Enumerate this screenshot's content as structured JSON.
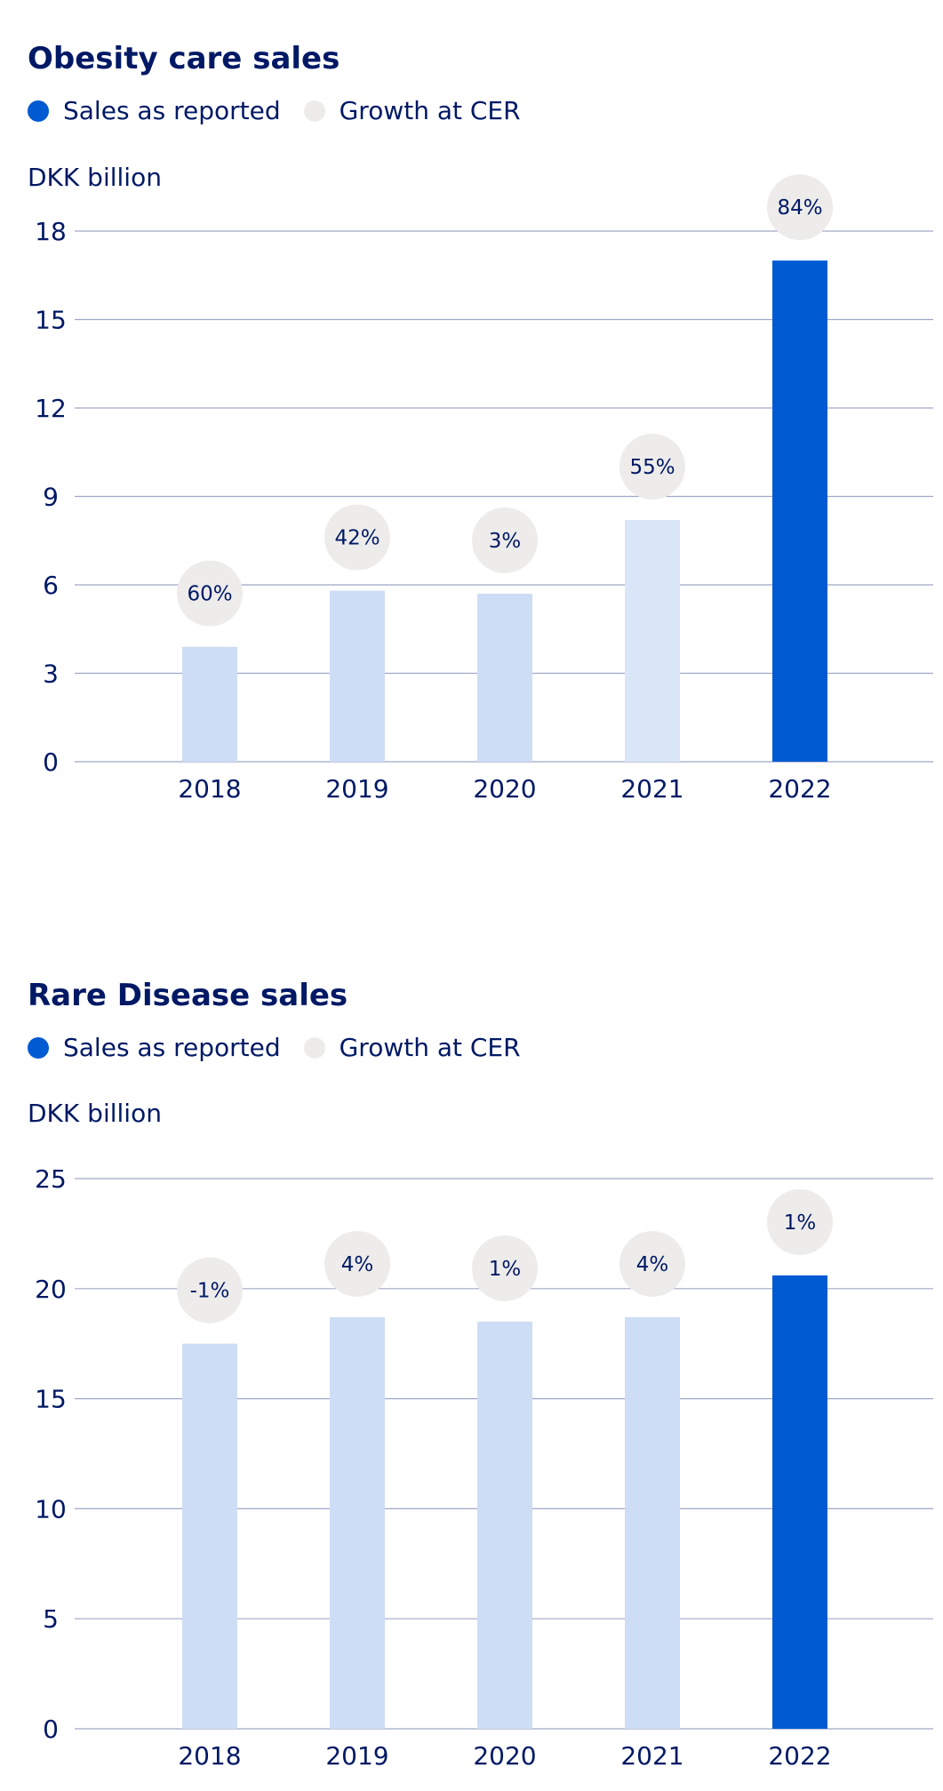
{
  "colors": {
    "text": "#001965",
    "gridline": "#a0a8c8",
    "bar_light": "#cdddf5",
    "bar_lighter": "#d9e6f7",
    "bar_highlight": "#005ad2",
    "growth_bubble": "#edecea"
  },
  "legend": {
    "sales_label": "Sales as reported",
    "growth_label": "Growth at CER"
  },
  "chart_data": [
    {
      "type": "bar",
      "title": "Obesity care sales",
      "ylabel": "DKK billion",
      "xlabel": "",
      "ylim": [
        0,
        18
      ],
      "yticks": [
        0,
        3,
        6,
        9,
        12,
        15,
        18
      ],
      "categories": [
        "2018",
        "2019",
        "2020",
        "2021",
        "2022"
      ],
      "series": [
        {
          "name": "Sales as reported",
          "values": [
            3.9,
            5.8,
            5.7,
            8.2,
            17.0
          ]
        },
        {
          "name": "Growth at CER",
          "values": [
            "60%",
            "42%",
            "3%",
            "55%",
            "84%"
          ]
        }
      ],
      "highlight_category": "2022",
      "grid": true
    },
    {
      "type": "bar",
      "title": "Rare Disease sales",
      "ylabel": "DKK billion",
      "xlabel": "",
      "ylim": [
        0,
        25
      ],
      "yticks": [
        0,
        5,
        10,
        15,
        20,
        25
      ],
      "categories": [
        "2018",
        "2019",
        "2020",
        "2021",
        "2022"
      ],
      "series": [
        {
          "name": "Sales as reported",
          "values": [
            17.5,
            18.7,
            18.5,
            18.7,
            20.6
          ]
        },
        {
          "name": "Growth at CER",
          "values": [
            "-1%",
            "4%",
            "1%",
            "4%",
            "1%"
          ]
        }
      ],
      "highlight_category": "2022",
      "grid": true
    }
  ]
}
